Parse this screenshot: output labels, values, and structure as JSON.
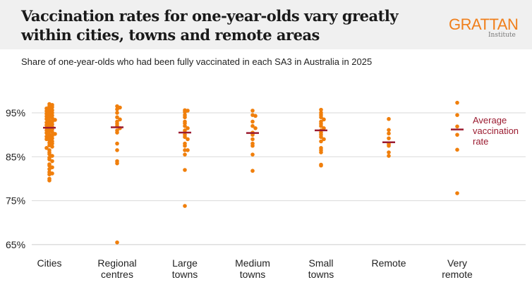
{
  "header": {
    "title": "Vaccination rates for one-year-olds vary greatly within cities, towns and remote areas",
    "logo": "GRATTAN",
    "logo_sub": "Institute",
    "subtitle": "Share of one-year-olds who had been fully vaccinated in each SA3 in Australia in 2025"
  },
  "colors": {
    "points": "#f07f0c",
    "average": "#9b1b30",
    "grid": "#d9d9d9"
  },
  "chart_data": {
    "type": "scatter",
    "title": "Vaccination rates for one-year-olds vary greatly within cities, towns and remote areas",
    "subtitle": "Share of one-year-olds who had been fully vaccinated in each SA3 in Australia in 2025",
    "ylim": [
      65,
      99
    ],
    "yticks": [
      65,
      75,
      85,
      95
    ],
    "ytick_labels": [
      "65%",
      "75%",
      "85%",
      "95%"
    ],
    "grid": true,
    "annotation": "Average vaccination rate",
    "categories": [
      "Cities",
      "Regional centres",
      "Large towns",
      "Medium towns",
      "Small towns",
      "Remote",
      "Very remote"
    ],
    "category_labels": [
      [
        "Cities"
      ],
      [
        "Regional",
        "centres"
      ],
      [
        "Large",
        "towns"
      ],
      [
        "Medium",
        "towns"
      ],
      [
        "Small",
        "towns"
      ],
      [
        "Remote"
      ],
      [
        "Very",
        "remote"
      ]
    ],
    "averages": [
      91.6,
      91.7,
      90.5,
      90.4,
      91.0,
      88.3,
      91.2
    ],
    "points": [
      [
        97,
        96.8,
        96.5,
        96.3,
        96,
        95.8,
        95.6,
        95.4,
        95.2,
        95,
        94.8,
        94.6,
        94.4,
        94.2,
        94,
        93.8,
        93.6,
        93.4,
        93.2,
        93,
        92.8,
        92.6,
        92.4,
        92.2,
        92,
        91.8,
        91.6,
        91.4,
        91.2,
        91,
        90.8,
        90.6,
        90.4,
        90.2,
        90,
        89.8,
        89.6,
        89.4,
        89.2,
        89,
        88.8,
        88.5,
        88.2,
        88,
        87.6,
        87.3,
        87,
        86.5,
        86,
        85.6,
        85.2,
        84.8,
        84.4,
        84,
        83.3,
        83,
        82.6,
        82.2,
        81.5,
        81.2,
        81,
        80,
        79.6
      ],
      [
        96.5,
        96.2,
        95.8,
        95,
        94,
        93.5,
        93,
        92.5,
        92,
        91.5,
        91,
        90.5,
        88,
        86.5,
        84,
        83.5,
        65.5
      ],
      [
        95.6,
        95.5,
        95.2,
        94.5,
        94,
        93,
        92.6,
        92,
        91.5,
        91,
        90.5,
        90,
        89.5,
        89,
        88,
        87.5,
        86.5,
        86.5,
        85.5,
        82,
        73.8
      ],
      [
        95.5,
        94.5,
        94.3,
        93,
        92,
        91.5,
        90.5,
        90,
        89,
        88,
        87.5,
        85.5,
        81.8
      ],
      [
        95.7,
        95,
        94.5,
        94,
        93.5,
        93,
        92.5,
        92,
        91.5,
        91,
        90.5,
        90,
        89.5,
        89,
        88.5,
        87,
        86.5,
        86,
        83.2,
        83
      ],
      [
        93.6,
        91.1,
        90.3,
        89.2,
        87.9,
        87.5,
        86,
        85.2
      ],
      [
        97.3,
        94.5,
        91.9,
        90,
        86.6,
        76.7
      ]
    ]
  }
}
